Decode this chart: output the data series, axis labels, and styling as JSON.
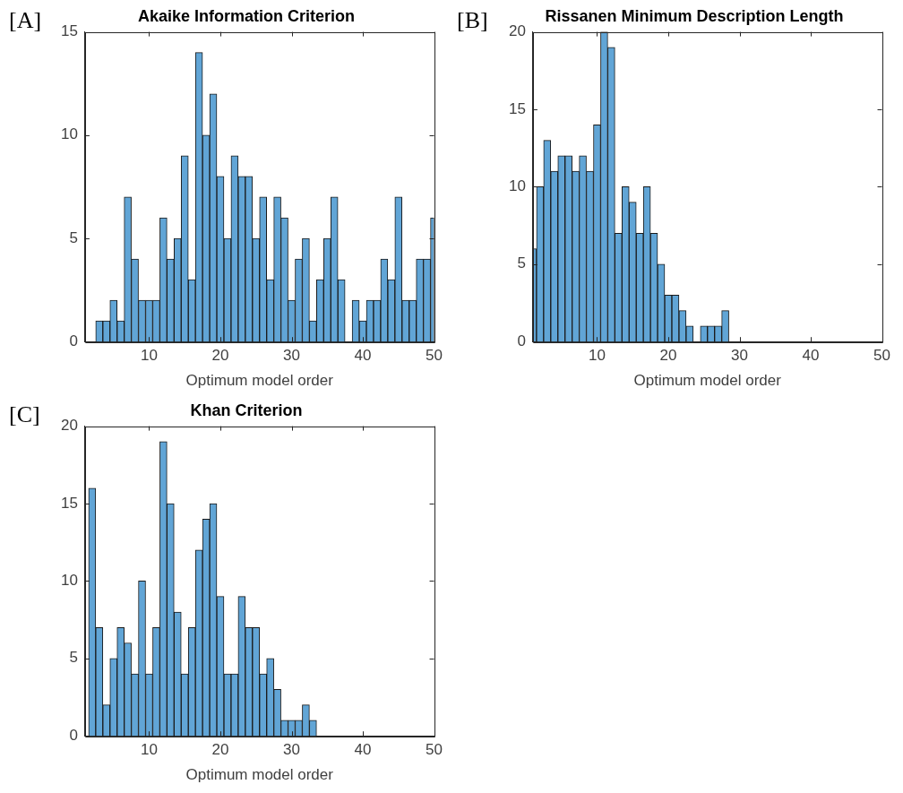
{
  "chart_data": [
    {
      "type": "histogram",
      "title": "Akaike Information Criterion",
      "xlabel": "Optimum model order",
      "color": "#61a5d6",
      "annotations": [
        "[A]"
      ],
      "bins": [
        2.5,
        3.5,
        4.5,
        5.5,
        6.5,
        7.5,
        8.5,
        9.5,
        10.5,
        11.5,
        12.5,
        13.5,
        14.5,
        15.5,
        16.5,
        17.5,
        18.5,
        19.5,
        20.5,
        21.5,
        22.5,
        23.5,
        24.5,
        25.5,
        26.5,
        27.5,
        28.5,
        29.5,
        30.5,
        31.5,
        32.5,
        33.5,
        34.5,
        35.5,
        36.5,
        37.5,
        38.5,
        39.5,
        40.5,
        41.5,
        42.5,
        43.5,
        44.5,
        45.5,
        46.5,
        47.5,
        48.5,
        49.5,
        50
      ],
      "values": [
        1,
        1,
        2,
        1,
        7,
        4,
        2,
        2,
        2,
        6,
        4,
        5,
        9,
        3,
        14,
        10,
        12,
        8,
        5,
        9,
        8,
        8,
        5,
        7,
        3,
        7,
        6,
        2,
        4,
        5,
        1,
        3,
        5,
        7,
        3,
        0,
        2,
        1,
        2,
        2,
        4,
        3,
        7,
        2,
        2,
        4,
        4,
        6
      ],
      "xlim": [
        1,
        50
      ],
      "xticks": [
        10,
        20,
        30,
        40,
        50
      ],
      "ylim": [
        0,
        15
      ],
      "yticks": [
        0,
        5,
        10,
        15
      ]
    },
    {
      "type": "histogram",
      "title": "Rissanen Minimum Description Length",
      "xlabel": "Optimum model order",
      "color": "#61a5d6",
      "annotations": [
        "[B]"
      ],
      "bins": [
        1,
        1.5,
        2.5,
        3.5,
        4.5,
        5.5,
        6.5,
        7.5,
        8.5,
        9.5,
        10.5,
        11.5,
        12.5,
        13.5,
        14.5,
        15.5,
        16.5,
        17.5,
        18.5,
        19.5,
        20.5,
        21.5,
        22.5,
        23.5,
        24.5,
        25.5,
        26.5,
        27.5,
        28.5
      ],
      "values": [
        6,
        10,
        13,
        11,
        12,
        12,
        11,
        12,
        11,
        14,
        20,
        19,
        7,
        10,
        9,
        7,
        10,
        7,
        5,
        3,
        3,
        2,
        1,
        0,
        1,
        1,
        1,
        2
      ],
      "xlim": [
        1,
        50
      ],
      "xticks": [
        10,
        20,
        30,
        40,
        50
      ],
      "ylim": [
        0,
        20
      ],
      "yticks": [
        0,
        5,
        10,
        15,
        20
      ]
    },
    {
      "type": "histogram",
      "title": "Khan Criterion",
      "xlabel": "Optimum model order",
      "color": "#61a5d6",
      "annotations": [
        "[C]"
      ],
      "bins": [
        1.5,
        2.5,
        3.5,
        4.5,
        5.5,
        6.5,
        7.5,
        8.5,
        9.5,
        10.5,
        11.5,
        12.5,
        13.5,
        14.5,
        15.5,
        16.5,
        17.5,
        18.5,
        19.5,
        20.5,
        21.5,
        22.5,
        23.5,
        24.5,
        25.5,
        26.5,
        27.5,
        28.5,
        29.5,
        30.5,
        31.5,
        32.5,
        33.5
      ],
      "values": [
        16,
        7,
        2,
        5,
        7,
        6,
        4,
        10,
        4,
        7,
        19,
        15,
        8,
        4,
        7,
        12,
        14,
        15,
        9,
        4,
        4,
        9,
        7,
        7,
        4,
        5,
        3,
        1,
        1,
        1,
        2,
        1
      ],
      "xlim": [
        1,
        50
      ],
      "xticks": [
        10,
        20,
        30,
        40,
        50
      ],
      "ylim": [
        0,
        20
      ],
      "yticks": [
        0,
        5,
        10,
        15,
        20
      ]
    }
  ]
}
